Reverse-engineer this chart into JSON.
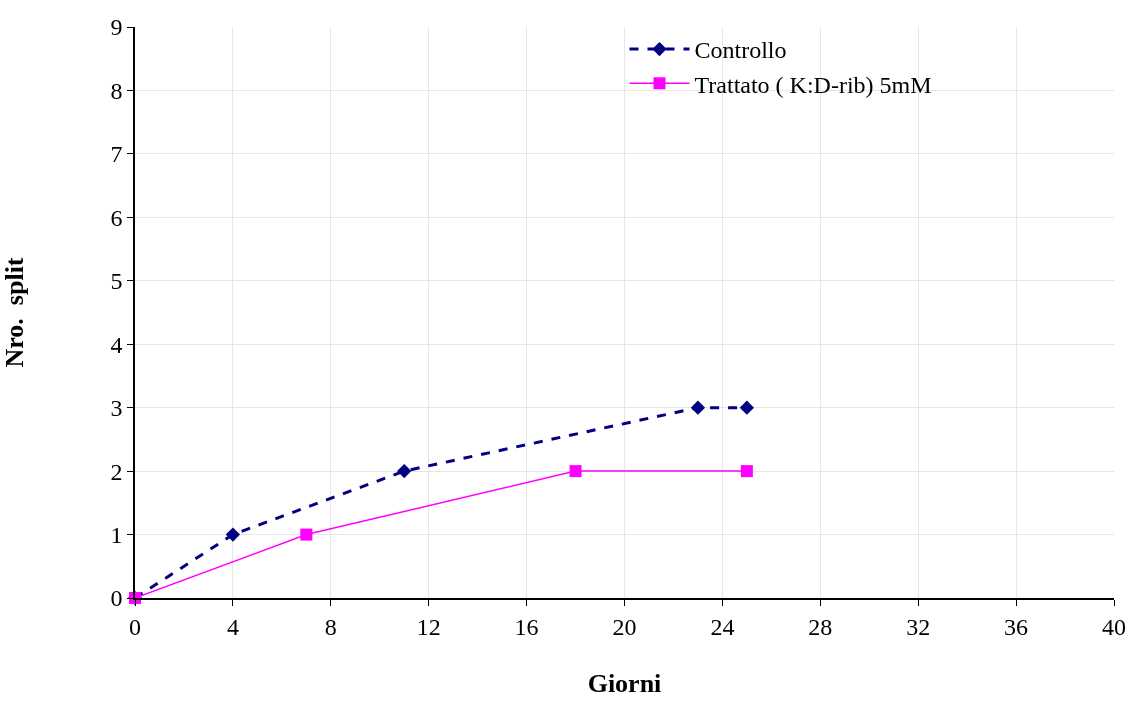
{
  "chart_data": {
    "type": "line",
    "xlabel": "Giorni",
    "ylabel": "Nro.  split",
    "xlim": [
      0,
      40
    ],
    "xticks": [
      0,
      4,
      8,
      12,
      16,
      20,
      24,
      28,
      32,
      36,
      40
    ],
    "ylim": [
      0,
      9
    ],
    "yticks": [
      0,
      1,
      2,
      3,
      4,
      5,
      6,
      7,
      8,
      9
    ],
    "grid": true,
    "legend": "top right",
    "series": [
      {
        "name": "Controllo",
        "color": "#000080",
        "marker": "diamond",
        "line_style": "dashed",
        "x": [
          0,
          4,
          11,
          23,
          25
        ],
        "values": [
          0,
          1,
          2,
          3,
          3
        ]
      },
      {
        "name": "Trattato ( K:D-rib) 5mM",
        "color": "#ff00ff",
        "marker": "square",
        "line_style": "solid",
        "x": [
          0,
          7,
          18,
          25
        ],
        "values": [
          0,
          1,
          2,
          2
        ]
      }
    ]
  }
}
